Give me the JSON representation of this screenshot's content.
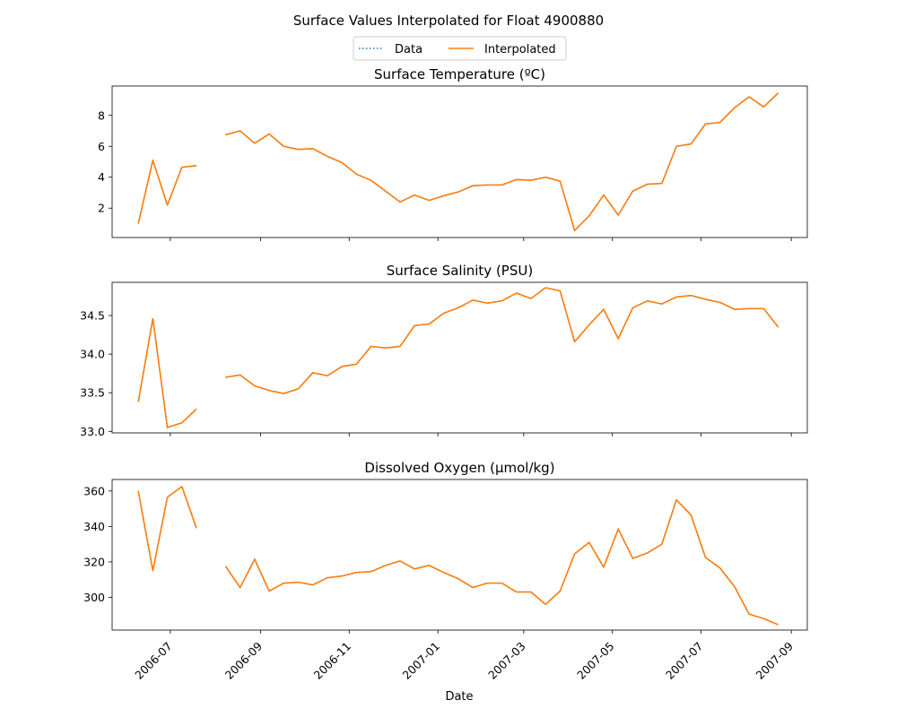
{
  "figure": {
    "title": "Surface Values Interpolated for Float 4900880",
    "legend": {
      "placement": "top-center",
      "entries": [
        {
          "name": "Data",
          "style": "dotted",
          "color": "#1f77b4"
        },
        {
          "name": "Interpolated",
          "style": "solid",
          "color": "#ff7f0e"
        }
      ]
    },
    "xlabel": "Date",
    "x_tick_labels": [
      "2006-07",
      "2006-09",
      "2006-11",
      "2007-01",
      "2007-03",
      "2007-05",
      "2007-07",
      "2007-09"
    ]
  },
  "colors": {
    "data": "#1f77b4",
    "interpolated": "#ff7f0e"
  },
  "chart_data": [
    {
      "type": "line",
      "title": "Surface Temperature (ºC)",
      "xlim": [
        "2006-05-22",
        "2007-09-12"
      ],
      "ylim": [
        0.1,
        9.9
      ],
      "yticks": [
        2,
        4,
        6,
        8
      ],
      "x": [
        "2006-06-09",
        "2006-06-19",
        "2006-06-29",
        "2006-07-09",
        "2006-07-19",
        "2006-07-29",
        "2006-08-08",
        "2006-08-18",
        "2006-08-28",
        "2006-09-07",
        "2006-09-17",
        "2006-09-27",
        "2006-10-07",
        "2006-10-17",
        "2006-10-27",
        "2006-11-06",
        "2006-11-16",
        "2006-11-26",
        "2006-12-06",
        "2006-12-16",
        "2006-12-26",
        "2007-01-05",
        "2007-01-15",
        "2007-01-25",
        "2007-02-04",
        "2007-02-14",
        "2007-02-24",
        "2007-03-06",
        "2007-03-16",
        "2007-03-26",
        "2007-04-05",
        "2007-04-15",
        "2007-04-25",
        "2007-05-05",
        "2007-05-15",
        "2007-05-25",
        "2007-06-04",
        "2007-06-14",
        "2007-06-24",
        "2007-07-04",
        "2007-07-14",
        "2007-07-24",
        "2007-08-03",
        "2007-08-13",
        "2007-08-23"
      ],
      "series": [
        {
          "name": "Data",
          "values": [
            1.0,
            5.1,
            2.2,
            4.65,
            4.75,
            null,
            6.75,
            7.0,
            6.2,
            6.8,
            6.0,
            5.8,
            5.85,
            5.35,
            4.95,
            4.2,
            3.8,
            3.1,
            2.4,
            2.85,
            2.5,
            2.8,
            3.05,
            3.45,
            3.5,
            3.5,
            3.85,
            3.8,
            4.0,
            3.75,
            0.55,
            1.5,
            2.85,
            1.55,
            3.1,
            3.55,
            3.6,
            6.0,
            6.15,
            7.45,
            7.55,
            8.5,
            9.2,
            8.55,
            9.45
          ]
        },
        {
          "name": "Interpolated",
          "values": [
            1.0,
            5.1,
            2.2,
            4.65,
            4.75,
            null,
            6.75,
            7.0,
            6.2,
            6.8,
            6.0,
            5.8,
            5.85,
            5.35,
            4.95,
            4.2,
            3.8,
            3.1,
            2.4,
            2.85,
            2.5,
            2.8,
            3.05,
            3.45,
            3.5,
            3.5,
            3.85,
            3.8,
            4.0,
            3.75,
            0.55,
            1.5,
            2.85,
            1.55,
            3.1,
            3.55,
            3.6,
            6.0,
            6.15,
            7.45,
            7.55,
            8.5,
            9.2,
            8.55,
            9.45
          ]
        }
      ]
    },
    {
      "type": "line",
      "title": "Surface Salinity (PSU)",
      "xlim": [
        "2006-05-22",
        "2007-09-12"
      ],
      "ylim": [
        32.98,
        34.93
      ],
      "yticks": [
        33.0,
        33.5,
        34.0,
        34.5
      ],
      "ytick_labels": [
        "33.0",
        "33.5",
        "34.0",
        "34.5"
      ],
      "x": [
        "2006-06-09",
        "2006-06-19",
        "2006-06-29",
        "2006-07-09",
        "2006-07-19",
        "2006-07-29",
        "2006-08-08",
        "2006-08-18",
        "2006-08-28",
        "2006-09-07",
        "2006-09-17",
        "2006-09-27",
        "2006-10-07",
        "2006-10-17",
        "2006-10-27",
        "2006-11-06",
        "2006-11-16",
        "2006-11-26",
        "2006-12-06",
        "2006-12-16",
        "2006-12-26",
        "2007-01-05",
        "2007-01-15",
        "2007-01-25",
        "2007-02-04",
        "2007-02-14",
        "2007-02-24",
        "2007-03-06",
        "2007-03-16",
        "2007-03-26",
        "2007-04-05",
        "2007-04-15",
        "2007-04-25",
        "2007-05-05",
        "2007-05-15",
        "2007-05-25",
        "2007-06-04",
        "2007-06-14",
        "2007-06-24",
        "2007-07-04",
        "2007-07-14",
        "2007-07-24",
        "2007-08-03",
        "2007-08-13",
        "2007-08-23"
      ],
      "series": [
        {
          "name": "Data",
          "values": [
            33.38,
            34.46,
            33.05,
            33.11,
            33.29,
            null,
            33.7,
            33.73,
            33.59,
            33.53,
            33.49,
            33.55,
            33.76,
            33.72,
            33.84,
            33.87,
            34.1,
            34.08,
            34.1,
            34.37,
            34.39,
            34.53,
            34.6,
            34.7,
            34.66,
            34.69,
            34.79,
            34.72,
            34.86,
            34.82,
            34.16,
            34.38,
            34.58,
            34.2,
            34.6,
            34.69,
            34.65,
            34.74,
            34.76,
            34.71,
            34.67,
            34.58,
            34.59,
            34.59,
            34.35
          ]
        },
        {
          "name": "Interpolated",
          "values": [
            33.38,
            34.46,
            33.05,
            33.11,
            33.29,
            null,
            33.7,
            33.73,
            33.59,
            33.53,
            33.49,
            33.55,
            33.76,
            33.72,
            33.84,
            33.87,
            34.1,
            34.08,
            34.1,
            34.37,
            34.39,
            34.53,
            34.6,
            34.7,
            34.66,
            34.69,
            34.79,
            34.72,
            34.86,
            34.82,
            34.16,
            34.38,
            34.58,
            34.2,
            34.6,
            34.69,
            34.65,
            34.74,
            34.76,
            34.71,
            34.67,
            34.58,
            34.59,
            34.59,
            34.35
          ]
        }
      ]
    },
    {
      "type": "line",
      "title": "Dissolved Oxygen (µmol/kg)",
      "xlim": [
        "2006-05-22",
        "2007-09-12"
      ],
      "ylim": [
        281.5,
        366.5
      ],
      "yticks": [
        300,
        320,
        340,
        360
      ],
      "x": [
        "2006-06-09",
        "2006-06-19",
        "2006-06-29",
        "2006-07-09",
        "2006-07-19",
        "2006-07-29",
        "2006-08-08",
        "2006-08-18",
        "2006-08-28",
        "2006-09-07",
        "2006-09-17",
        "2006-09-27",
        "2006-10-07",
        "2006-10-17",
        "2006-10-27",
        "2006-11-06",
        "2006-11-16",
        "2006-11-26",
        "2006-12-06",
        "2006-12-16",
        "2006-12-26",
        "2007-01-05",
        "2007-01-15",
        "2007-01-25",
        "2007-02-04",
        "2007-02-14",
        "2007-02-24",
        "2007-03-06",
        "2007-03-16",
        "2007-03-26",
        "2007-04-05",
        "2007-04-15",
        "2007-04-25",
        "2007-05-05",
        "2007-05-15",
        "2007-05-25",
        "2007-06-04",
        "2007-06-14",
        "2007-06-24",
        "2007-07-04",
        "2007-07-14",
        "2007-07-24",
        "2007-08-03",
        "2007-08-13",
        "2007-08-23"
      ],
      "series": [
        {
          "name": "Data",
          "values": [
            360,
            315,
            356.5,
            362.5,
            339,
            null,
            317.5,
            305.5,
            321.5,
            303.5,
            308,
            308.5,
            307,
            311,
            312,
            314,
            314.5,
            318,
            320.5,
            316,
            318,
            314,
            310.5,
            305.5,
            308,
            308,
            303,
            303,
            296,
            303.5,
            324.5,
            331,
            317,
            338.5,
            322,
            325,
            330,
            355,
            346.5,
            322.5,
            316.5,
            306,
            290.5,
            288,
            284.5
          ]
        },
        {
          "name": "Interpolated",
          "values": [
            360,
            315,
            356.5,
            362.5,
            339,
            null,
            317.5,
            305.5,
            321.5,
            303.5,
            308,
            308.5,
            307,
            311,
            312,
            314,
            314.5,
            318,
            320.5,
            316,
            318,
            314,
            310.5,
            305.5,
            308,
            308,
            303,
            303,
            296,
            303.5,
            324.5,
            331,
            317,
            338.5,
            322,
            325,
            330,
            355,
            346.5,
            322.5,
            316.5,
            306,
            290.5,
            288,
            284.5
          ]
        }
      ]
    }
  ]
}
